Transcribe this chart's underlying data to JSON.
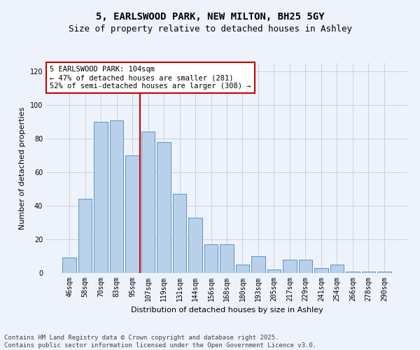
{
  "title": "5, EARLSWOOD PARK, NEW MILTON, BH25 5GY",
  "subtitle": "Size of property relative to detached houses in Ashley",
  "xlabel": "Distribution of detached houses by size in Ashley",
  "ylabel": "Number of detached properties",
  "categories": [
    "46sqm",
    "58sqm",
    "70sqm",
    "83sqm",
    "95sqm",
    "107sqm",
    "119sqm",
    "131sqm",
    "144sqm",
    "156sqm",
    "168sqm",
    "180sqm",
    "193sqm",
    "205sqm",
    "217sqm",
    "229sqm",
    "241sqm",
    "254sqm",
    "266sqm",
    "278sqm",
    "290sqm"
  ],
  "values": [
    9,
    44,
    90,
    91,
    70,
    84,
    78,
    47,
    33,
    17,
    17,
    5,
    10,
    2,
    8,
    8,
    3,
    5,
    1,
    1,
    1
  ],
  "bar_color": "#b8d0ea",
  "bar_edge_color": "#5a96c8",
  "background_color": "#eef2fa",
  "grid_color": "#c8d0e0",
  "annotation_line1": "5 EARLSWOOD PARK: 104sqm",
  "annotation_line2": "← 47% of detached houses are smaller (281)",
  "annotation_line3": "52% of semi-detached houses are larger (308) →",
  "annotation_box_color": "#ffffff",
  "annotation_box_edge_color": "#cc0000",
  "marker_line_color": "#cc0000",
  "marker_line_index": 5,
  "ylim_max": 125,
  "yticks": [
    0,
    20,
    40,
    60,
    80,
    100,
    120
  ],
  "footer_line1": "Contains HM Land Registry data © Crown copyright and database right 2025.",
  "footer_line2": "Contains public sector information licensed under the Open Government Licence v3.0.",
  "title_fontsize": 10,
  "subtitle_fontsize": 9,
  "axis_label_fontsize": 8,
  "tick_fontsize": 7,
  "annotation_fontsize": 7.5,
  "footer_fontsize": 6.5
}
